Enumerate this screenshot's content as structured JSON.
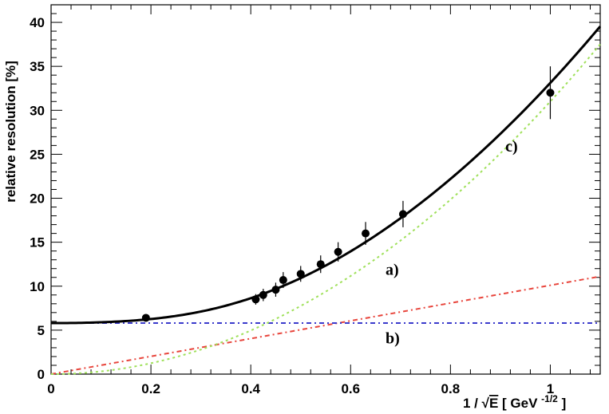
{
  "chart_data": {
    "type": "line",
    "title": "",
    "xlabel": {
      "prefix": "1 / ",
      "sqrt_symbol": "√",
      "var": "E",
      "unit_open": " [ GeV ",
      "unit_exp": "-1/2",
      "unit_close": " ]"
    },
    "ylabel": "relative resolution  [%]",
    "xlim": [
      0,
      1.1
    ],
    "ylim": [
      0,
      42
    ],
    "x_ticks": [
      {
        "value": 0,
        "label": "0"
      },
      {
        "value": 0.2,
        "label": "0.2"
      },
      {
        "value": 0.4,
        "label": "0.4"
      },
      {
        "value": 0.6,
        "label": "0.6"
      },
      {
        "value": 0.8,
        "label": "0.8"
      },
      {
        "value": 1.0,
        "label": "1"
      }
    ],
    "y_ticks": [
      {
        "value": 0,
        "label": "0"
      },
      {
        "value": 5,
        "label": "5"
      },
      {
        "value": 10,
        "label": "10"
      },
      {
        "value": 15,
        "label": "15"
      },
      {
        "value": 20,
        "label": "20"
      },
      {
        "value": 25,
        "label": "25"
      },
      {
        "value": 30,
        "label": "30"
      },
      {
        "value": 35,
        "label": "35"
      },
      {
        "value": 40,
        "label": "40"
      }
    ],
    "data_points": [
      {
        "x": 0.19,
        "y": 6.4,
        "yerr": 0.3
      },
      {
        "x": 0.41,
        "y": 8.5,
        "yerr": 0.6
      },
      {
        "x": 0.425,
        "y": 9.0,
        "yerr": 0.7
      },
      {
        "x": 0.45,
        "y": 9.6,
        "yerr": 0.8
      },
      {
        "x": 0.465,
        "y": 10.7,
        "yerr": 0.9
      },
      {
        "x": 0.5,
        "y": 11.4,
        "yerr": 0.9
      },
      {
        "x": 0.54,
        "y": 12.5,
        "yerr": 1.0
      },
      {
        "x": 0.575,
        "y": 13.9,
        "yerr": 1.1
      },
      {
        "x": 0.63,
        "y": 16.0,
        "yerr": 1.3
      },
      {
        "x": 0.705,
        "y": 18.2,
        "yerr": 1.5
      },
      {
        "x": 1.0,
        "y": 32.0,
        "yerr": 3.0
      }
    ],
    "series": [
      {
        "label": "a)",
        "kind": "linear",
        "a": 10.1,
        "color": "#e8453c",
        "dash": "6,4,2,4",
        "label_at": {
          "x": 0.67,
          "y": 11.3
        }
      },
      {
        "label": "b)",
        "kind": "constant",
        "b": 5.8,
        "color": "#3a3acc",
        "dash": "6,4,2,4",
        "label_at": {
          "x": 0.67,
          "y": 3.5
        }
      },
      {
        "label": "c)",
        "kind": "quadratic",
        "c": 31.0,
        "color": "#9fe05a",
        "dash": "3,4",
        "label_at": {
          "x": 0.91,
          "y": 25.3
        }
      },
      {
        "label": "",
        "kind": "total",
        "color": "#000000",
        "dash": ""
      }
    ]
  }
}
